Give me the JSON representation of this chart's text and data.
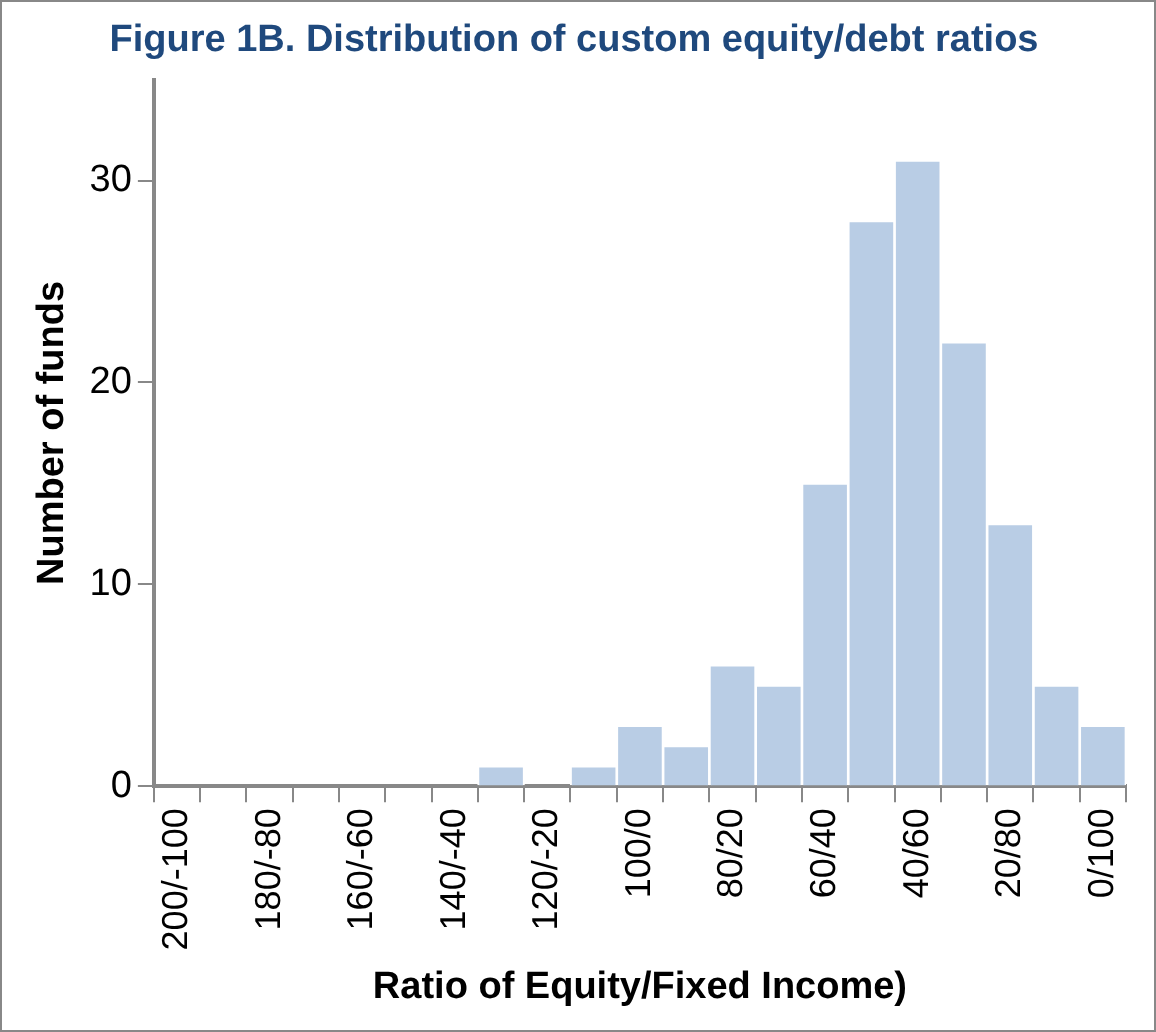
{
  "chart_data": {
    "type": "bar",
    "title": "Figure 1B. Distribution of custom equity/debt ratios",
    "xlabel": "Ratio of Equity/Fixed Income)",
    "ylabel": "Number of funds",
    "categories": [
      "200/-100",
      null,
      "180/-80",
      null,
      "160/-60",
      null,
      "140/-40",
      null,
      "120/-20",
      null,
      "100/0",
      null,
      "80/20",
      null,
      "60/40",
      null,
      "40/60",
      null,
      "20/80",
      null,
      "0/100"
    ],
    "values": [
      0,
      0,
      0,
      0,
      0,
      0,
      0,
      1,
      0,
      1,
      3,
      2,
      6,
      5,
      15,
      28,
      31,
      22,
      13,
      5,
      3
    ],
    "color": "#b9cde5",
    "ylim": [
      0,
      35
    ],
    "yticks": [
      0,
      10,
      20,
      30
    ],
    "grid": false,
    "legend": false
  }
}
